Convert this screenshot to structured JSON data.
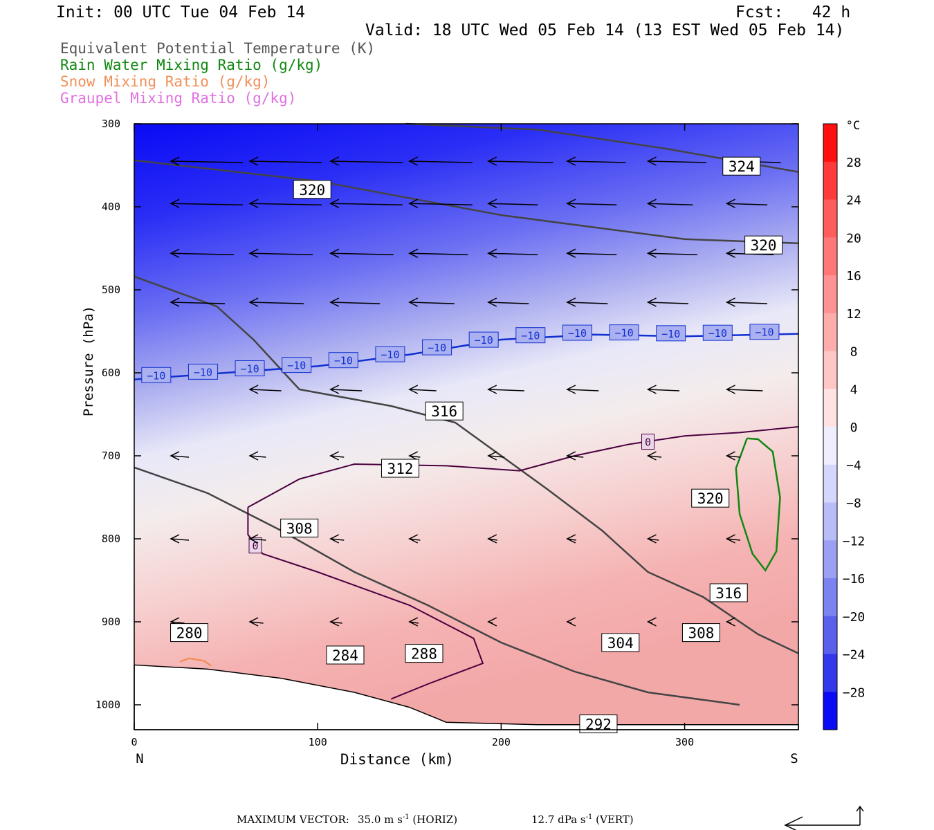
{
  "header": {
    "init": "Init: 00 UTC Tue 04 Feb 14",
    "fcst": "Fcst:   42 h",
    "valid": "Valid: 18 UTC Wed 05 Feb 14 (13 EST Wed 05 Feb 14)"
  },
  "legend": [
    {
      "label": "Equivalent Potential Temperature (K)",
      "color": "#555555"
    },
    {
      "label": "Rain Water Mixing Ratio (g/kg)",
      "color": "#118811"
    },
    {
      "label": "Snow Mixing Ratio (g/kg)",
      "color": "#f0905a"
    },
    {
      "label": "Graupel Mixing Ratio (g/kg)",
      "color": "#e070e0"
    }
  ],
  "footer": {
    "max_vector_label": "MAXIMUM VECTOR:",
    "horiz": "35.0 m s",
    "horiz_unit": "(HORIZ)",
    "vert": "12.7 dPa s",
    "vert_unit": "(VERT)",
    "exponent": "-1"
  },
  "chart_data": {
    "type": "cross-section",
    "xlabel": "Distance (km)",
    "ylabel": "Pressure (hPa)",
    "x_left_label": "N",
    "x_right_label": "S",
    "xlim": [
      0,
      362
    ],
    "ylim": [
      1028,
      300
    ],
    "x_ticks": [
      0,
      100,
      200,
      300
    ],
    "y_ticks": [
      300,
      400,
      500,
      600,
      700,
      800,
      900,
      1000
    ],
    "colorbar": {
      "unit": "°C",
      "min": -32,
      "max": 32,
      "tick_values": [
        28,
        24,
        20,
        16,
        12,
        8,
        4,
        0,
        -4,
        -8,
        -12,
        -16,
        -20,
        -24,
        -28
      ],
      "tick_labels": [
        "28",
        "24",
        "20",
        "16",
        "12",
        "8",
        "4",
        "0",
        "−4",
        "−8",
        "−12",
        "−16",
        "−20",
        "−24",
        "−28"
      ]
    },
    "theta_e_contours": [
      {
        "label": "324",
        "label_at": [
          331,
          351
        ],
        "points": [
          [
            148,
            300
          ],
          [
            220,
            307
          ],
          [
            290,
            330
          ],
          [
            362,
            358
          ]
        ]
      },
      {
        "label": "320",
        "label_at": [
          97,
          379
        ],
        "points": [
          [
            0,
            344
          ],
          [
            100,
            369
          ],
          [
            200,
            410
          ],
          [
            300,
            439
          ],
          [
            362,
            444
          ]
        ]
      },
      {
        "label": "320",
        "label_at": [
          343,
          446
        ],
        "points": []
      },
      {
        "label": "316",
        "label_at": [
          169,
          646
        ],
        "points": [
          [
            0,
            484
          ],
          [
            45,
            520
          ],
          [
            65,
            560
          ],
          [
            90,
            620
          ],
          [
            140,
            640
          ],
          [
            175,
            660
          ],
          [
            200,
            700
          ],
          [
            225,
            740
          ],
          [
            255,
            790
          ],
          [
            280,
            840
          ],
          [
            310,
            870
          ],
          [
            340,
            915
          ],
          [
            362,
            938
          ]
        ]
      },
      {
        "label": "312",
        "label_at": [
          145,
          715
        ],
        "points": [
          [
            0,
            714
          ],
          [
            40,
            745
          ],
          [
            80,
            790
          ],
          [
            120,
            840
          ],
          [
            160,
            880
          ],
          [
            200,
            925
          ],
          [
            240,
            960
          ],
          [
            280,
            985
          ],
          [
            330,
            1000
          ]
        ]
      },
      {
        "label": "320",
        "label_at": [
          314,
          751
        ],
        "points": []
      },
      {
        "label": "316",
        "label_at": [
          324,
          865
        ],
        "points": []
      },
      {
        "label": "308",
        "label_at": [
          90,
          787
        ],
        "points": []
      },
      {
        "label": "304",
        "label_at": [
          265,
          925
        ],
        "points": []
      },
      {
        "label": "308",
        "label_at": [
          309,
          913
        ],
        "points": []
      },
      {
        "label": "280",
        "label_at": [
          30,
          913
        ],
        "points": []
      },
      {
        "label": "284",
        "label_at": [
          115,
          940
        ],
        "points": []
      },
      {
        "label": "288",
        "label_at": [
          158,
          938
        ],
        "points": []
      },
      {
        "label": "292",
        "label_at": [
          253,
          1023
        ],
        "points": []
      }
    ],
    "isotherm_minus10": {
      "label": "−10",
      "points": [
        [
          0,
          608
        ],
        [
          50,
          600
        ],
        [
          100,
          592
        ],
        [
          150,
          578
        ],
        [
          200,
          560
        ],
        [
          250,
          554
        ],
        [
          300,
          556
        ],
        [
          362,
          553
        ]
      ]
    },
    "isotherm_zero": {
      "label": "0",
      "label_points": [
        [
          280,
          683
        ],
        [
          66,
          808
        ]
      ]
    },
    "annotations": []
  }
}
